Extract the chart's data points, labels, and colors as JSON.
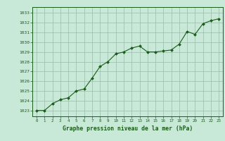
{
  "x": [
    0,
    1,
    2,
    3,
    4,
    5,
    6,
    7,
    8,
    9,
    10,
    11,
    12,
    13,
    14,
    15,
    16,
    17,
    18,
    19,
    20,
    21,
    22,
    23
  ],
  "y": [
    1023.0,
    1023.0,
    1023.7,
    1024.1,
    1024.3,
    1025.0,
    1025.2,
    1026.3,
    1027.5,
    1028.0,
    1028.8,
    1029.0,
    1029.4,
    1029.6,
    1029.0,
    1029.0,
    1029.1,
    1029.2,
    1029.8,
    1031.1,
    1030.8,
    1031.9,
    1032.2,
    1032.4
  ],
  "line_color": "#1a5c1a",
  "marker_color": "#1a5c1a",
  "bg_color": "#c8e8d8",
  "grid_color": "#99bbaa",
  "title": "Graphe pression niveau de la mer (hPa)",
  "ylabel_min": 1023,
  "ylabel_max": 1033,
  "ylabel_step": 1,
  "xlim": [
    -0.5,
    23.5
  ],
  "ylim": [
    1022.4,
    1033.6
  ]
}
